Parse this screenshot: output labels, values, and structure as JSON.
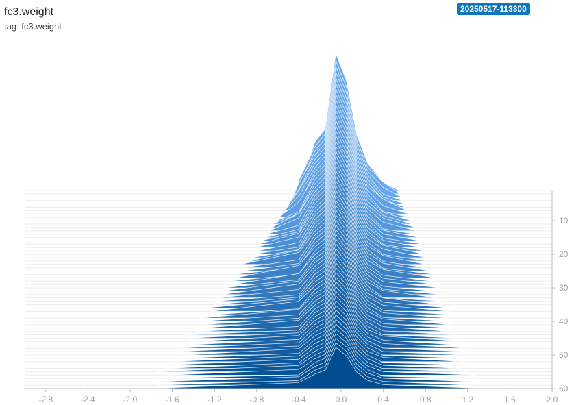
{
  "header": {
    "title": "fc3.weight",
    "subtitle": "tag: fc3.weight",
    "run_badge": "20250517-113300"
  },
  "colors": {
    "back_slice": "#6aaaf0",
    "front_slice": "#004d92",
    "slice_stroke": "#ffffff",
    "grid": "#ececec",
    "axis": "#bdbdbd",
    "badge": "#0d77bd"
  },
  "chart_data": {
    "type": "histogram",
    "mode": "offset",
    "x_axis": {
      "range": [
        -3.0,
        2.0
      ],
      "ticks": [
        "-2.8",
        "-2.4",
        "-2.0",
        "-1.6",
        "-1.2",
        "-0.8",
        "-0.4",
        "0.0",
        "0.4",
        "0.8",
        "1.2",
        "1.6",
        "2.0"
      ]
    },
    "step_axis": {
      "range": [
        1,
        60
      ],
      "ticks": [
        "10",
        "20",
        "30",
        "40",
        "50",
        "60"
      ],
      "position": "right"
    },
    "profile": {
      "x": [
        -0.25,
        -0.15,
        -0.05,
        0.05,
        0.15,
        0.25
      ],
      "shape": [
        0.35,
        0.45,
        1.0,
        0.8,
        0.4,
        0.2
      ]
    },
    "first_step": {
      "step": 1,
      "left": -0.4,
      "right": 0.55,
      "peak": 200
    },
    "last_step": {
      "step": 60,
      "left": -1.8,
      "right": 1.3,
      "peak": 60
    },
    "edge_wiggle": 0.1
  }
}
